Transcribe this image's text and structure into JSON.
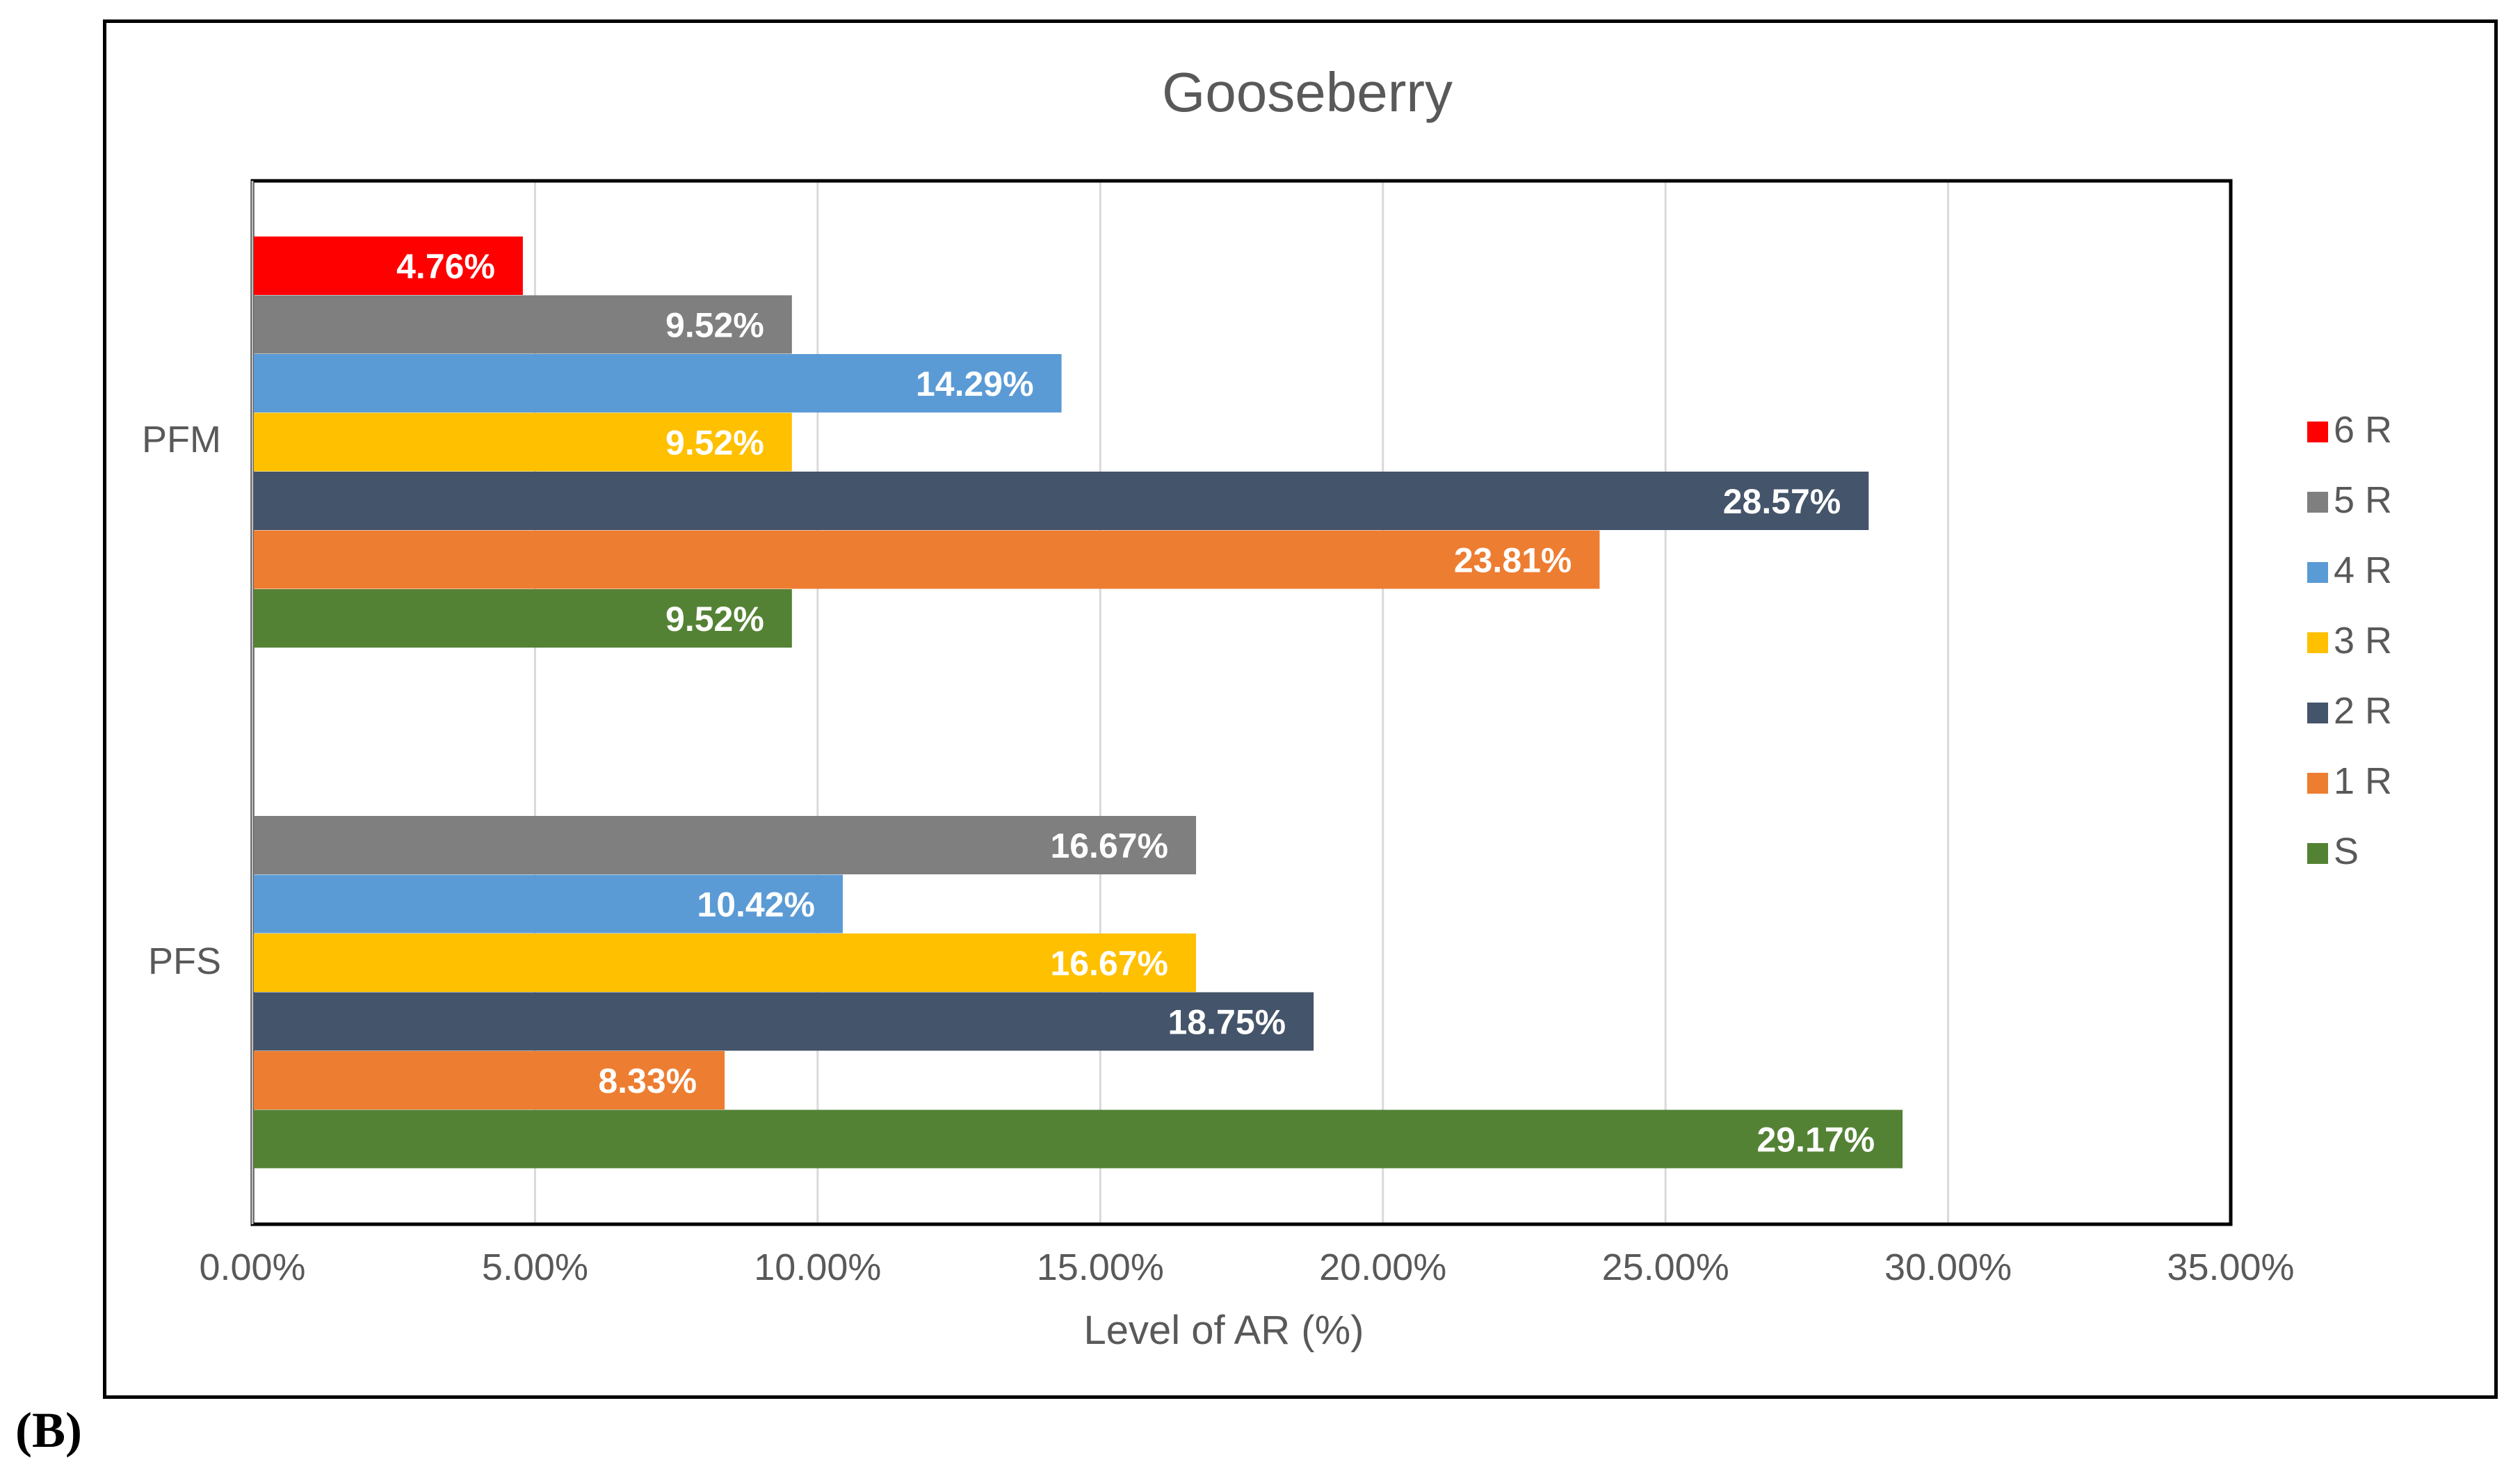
{
  "panel_label": "(B)",
  "chart_data": {
    "type": "bar",
    "orientation": "horizontal",
    "title": "Gooseberry",
    "xlabel": "Level of AR (%)",
    "ylabel": "",
    "xlim": [
      0,
      35
    ],
    "xticks": [
      0,
      5,
      10,
      15,
      20,
      25,
      30,
      35
    ],
    "xtick_labels": [
      "0.00%",
      "5.00%",
      "10.00%",
      "15.00%",
      "20.00%",
      "25.00%",
      "30.00%",
      "35.00%"
    ],
    "grid": true,
    "legend_position": "right",
    "categories": [
      "PFM",
      "PFS"
    ],
    "series": [
      {
        "name": "6 R",
        "color": "#ff0000",
        "values": [
          4.76,
          null
        ],
        "labels": [
          "4.76%",
          ""
        ]
      },
      {
        "name": "5 R",
        "color": "#7f7f7f",
        "values": [
          9.52,
          16.67
        ],
        "labels": [
          "9.52%",
          "16.67%"
        ]
      },
      {
        "name": "4 R",
        "color": "#5b9bd5",
        "values": [
          14.29,
          10.42
        ],
        "labels": [
          "14.29%",
          "10.42%"
        ]
      },
      {
        "name": "3 R",
        "color": "#ffc000",
        "values": [
          9.52,
          16.67
        ],
        "labels": [
          "9.52%",
          "16.67%"
        ]
      },
      {
        "name": "2 R",
        "color": "#44546a",
        "values": [
          28.57,
          18.75
        ],
        "labels": [
          "28.57%",
          "18.75%"
        ]
      },
      {
        "name": "1 R",
        "color": "#ed7d31",
        "values": [
          23.81,
          8.33
        ],
        "labels": [
          "23.81%",
          "8.33%"
        ]
      },
      {
        "name": "S",
        "color": "#548235",
        "values": [
          9.52,
          29.17
        ],
        "labels": [
          "9.52%",
          "29.17%"
        ]
      }
    ]
  }
}
